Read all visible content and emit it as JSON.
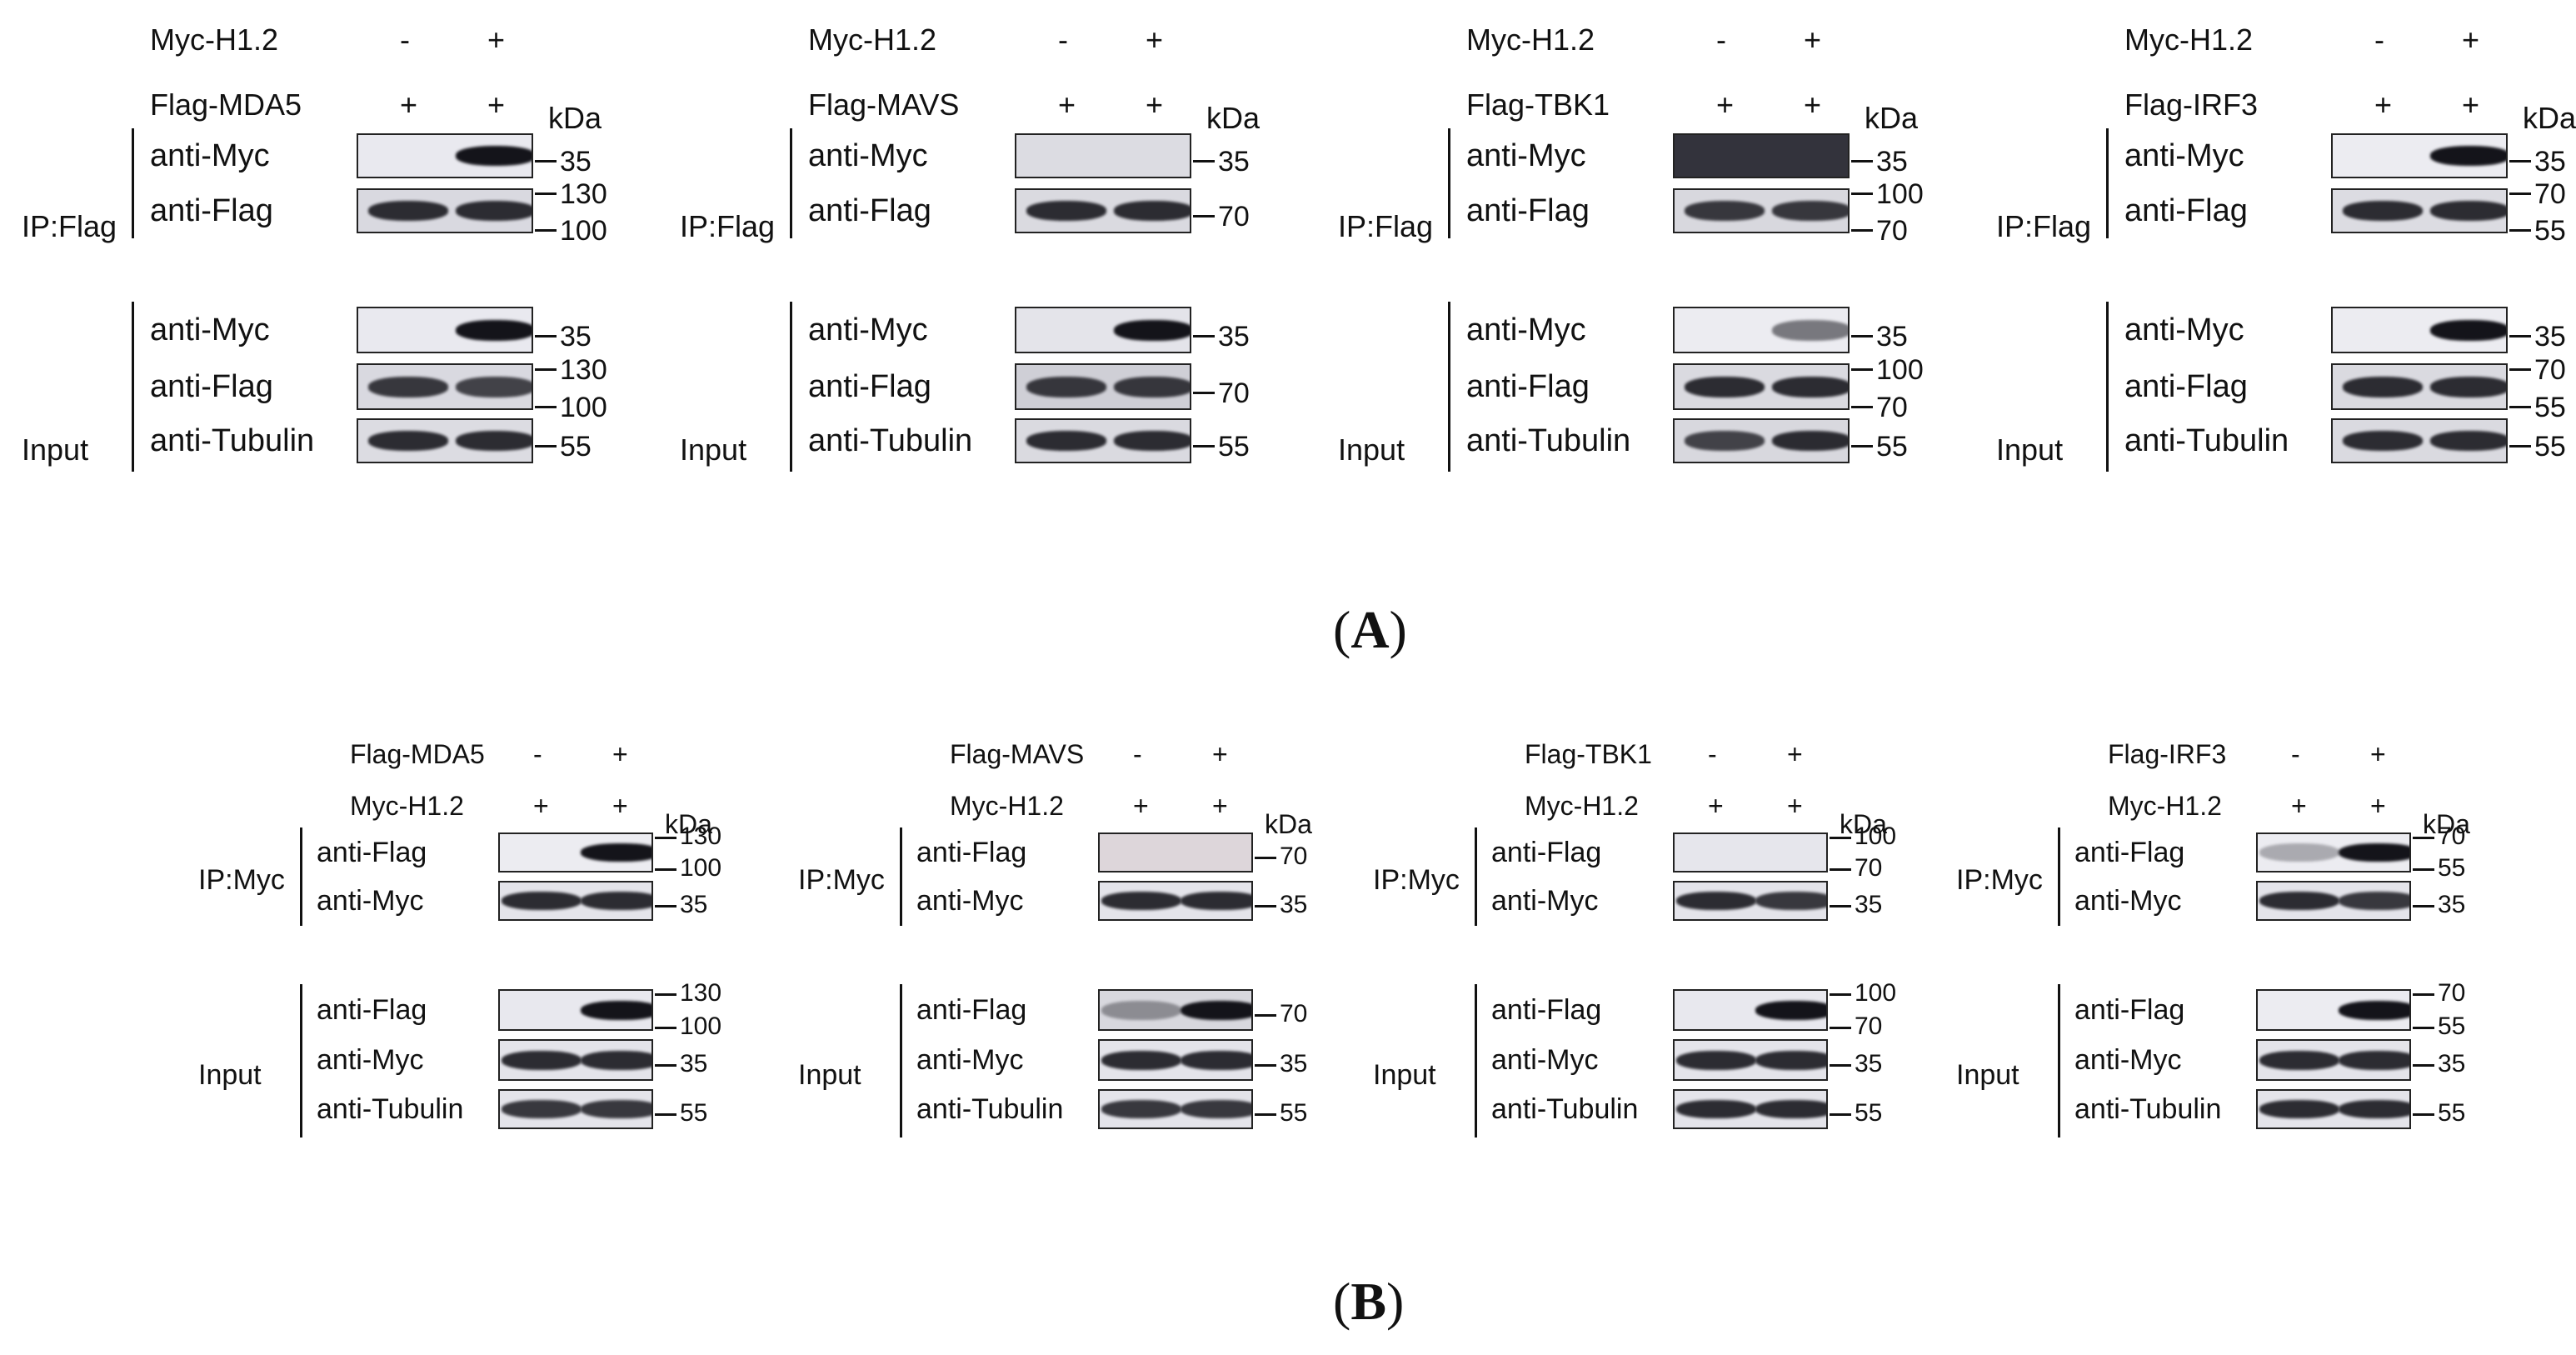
{
  "captions": {
    "A": "A",
    "B": "B"
  },
  "unit": "kDa",
  "panels": [
    {
      "row1": {
        "label": "Myc-H1.2",
        "lane1": "-",
        "lane2": "+"
      },
      "row2": {
        "label": "Flag-MDA5",
        "lane1": "+",
        "lane2": "+"
      },
      "ip_group": "IP:Flag",
      "input_group": "Input",
      "blots": [
        {
          "label": "anti-Myc",
          "markers": [
            "35"
          ]
        },
        {
          "label": "anti-Flag",
          "markers": [
            "130",
            "100"
          ]
        },
        {
          "label": "anti-Myc",
          "markers": [
            "35"
          ]
        },
        {
          "label": "anti-Flag",
          "markers": [
            "130",
            "100"
          ]
        },
        {
          "label": "anti-Tubulin",
          "markers": [
            "55"
          ]
        }
      ]
    },
    {
      "row1": {
        "label": "Myc-H1.2",
        "lane1": "-",
        "lane2": "+"
      },
      "row2": {
        "label": "Flag-MAVS",
        "lane1": "+",
        "lane2": "+"
      },
      "ip_group": "IP:Flag",
      "input_group": "Input",
      "blots": [
        {
          "label": "anti-Myc",
          "markers": [
            "35"
          ]
        },
        {
          "label": "anti-Flag",
          "markers": [
            "70"
          ]
        },
        {
          "label": "anti-Myc",
          "markers": [
            "35"
          ]
        },
        {
          "label": "anti-Flag",
          "markers": [
            "70"
          ]
        },
        {
          "label": "anti-Tubulin",
          "markers": [
            "55"
          ]
        }
      ]
    },
    {
      "row1": {
        "label": "Myc-H1.2",
        "lane1": "-",
        "lane2": "+"
      },
      "row2": {
        "label": "Flag-TBK1",
        "lane1": "+",
        "lane2": "+"
      },
      "ip_group": "IP:Flag",
      "input_group": "Input",
      "blots": [
        {
          "label": "anti-Myc",
          "markers": [
            "35"
          ]
        },
        {
          "label": "anti-Flag",
          "markers": [
            "100",
            "70"
          ]
        },
        {
          "label": "anti-Myc",
          "markers": [
            "35"
          ]
        },
        {
          "label": "anti-Flag",
          "markers": [
            "100",
            "70"
          ]
        },
        {
          "label": "anti-Tubulin",
          "markers": [
            "55"
          ]
        }
      ]
    },
    {
      "row1": {
        "label": "Myc-H1.2",
        "lane1": "-",
        "lane2": "+"
      },
      "row2": {
        "label": "Flag-IRF3",
        "lane1": "+",
        "lane2": "+"
      },
      "ip_group": "IP:Flag",
      "input_group": "Input",
      "blots": [
        {
          "label": "anti-Myc",
          "markers": [
            "35"
          ]
        },
        {
          "label": "anti-Flag",
          "markers": [
            "70",
            "55"
          ]
        },
        {
          "label": "anti-Myc",
          "markers": [
            "35"
          ]
        },
        {
          "label": "anti-Flag",
          "markers": [
            "70",
            "55"
          ]
        },
        {
          "label": "anti-Tubulin",
          "markers": [
            "55"
          ]
        }
      ]
    },
    {
      "row1": {
        "label": "Flag-MDA5",
        "lane1": "-",
        "lane2": "+"
      },
      "row2": {
        "label": "Myc-H1.2",
        "lane1": "+",
        "lane2": "+"
      },
      "ip_group": "IP:Myc",
      "input_group": "Input",
      "blots": [
        {
          "label": "anti-Flag",
          "markers": [
            "130",
            "100"
          ]
        },
        {
          "label": "anti-Myc",
          "markers": [
            "35"
          ]
        },
        {
          "label": "anti-Flag",
          "markers": [
            "130",
            "100"
          ]
        },
        {
          "label": "anti-Myc",
          "markers": [
            "35"
          ]
        },
        {
          "label": "anti-Tubulin",
          "markers": [
            "55"
          ]
        }
      ]
    },
    {
      "row1": {
        "label": "Flag-MAVS",
        "lane1": "-",
        "lane2": "+"
      },
      "row2": {
        "label": "Myc-H1.2",
        "lane1": "+",
        "lane2": "+"
      },
      "ip_group": "IP:Myc",
      "input_group": "Input",
      "blots": [
        {
          "label": "anti-Flag",
          "markers": [
            "70"
          ]
        },
        {
          "label": "anti-Myc",
          "markers": [
            "35"
          ]
        },
        {
          "label": "anti-Flag",
          "markers": [
            "70"
          ]
        },
        {
          "label": "anti-Myc",
          "markers": [
            "35"
          ]
        },
        {
          "label": "anti-Tubulin",
          "markers": [
            "55"
          ]
        }
      ]
    },
    {
      "row1": {
        "label": "Flag-TBK1",
        "lane1": "-",
        "lane2": "+"
      },
      "row2": {
        "label": "Myc-H1.2",
        "lane1": "+",
        "lane2": "+"
      },
      "ip_group": "IP:Myc",
      "input_group": "Input",
      "blots": [
        {
          "label": "anti-Flag",
          "markers": [
            "100",
            "70"
          ]
        },
        {
          "label": "anti-Myc",
          "markers": [
            "35"
          ]
        },
        {
          "label": "anti-Flag",
          "markers": [
            "100",
            "70"
          ]
        },
        {
          "label": "anti-Myc",
          "markers": [
            "35"
          ]
        },
        {
          "label": "anti-Tubulin",
          "markers": [
            "55"
          ]
        }
      ]
    },
    {
      "row1": {
        "label": "Flag-IRF3",
        "lane1": "-",
        "lane2": "+"
      },
      "row2": {
        "label": "Myc-H1.2",
        "lane1": "+",
        "lane2": "+"
      },
      "ip_group": "IP:Myc",
      "input_group": "Input",
      "blots": [
        {
          "label": "anti-Flag",
          "markers": [
            "70",
            "55"
          ]
        },
        {
          "label": "anti-Myc",
          "markers": [
            "35"
          ]
        },
        {
          "label": "anti-Flag",
          "markers": [
            "70",
            "55"
          ]
        },
        {
          "label": "anti-Myc",
          "markers": [
            "35"
          ]
        },
        {
          "label": "anti-Tubulin",
          "markers": [
            "55"
          ]
        }
      ]
    }
  ]
}
